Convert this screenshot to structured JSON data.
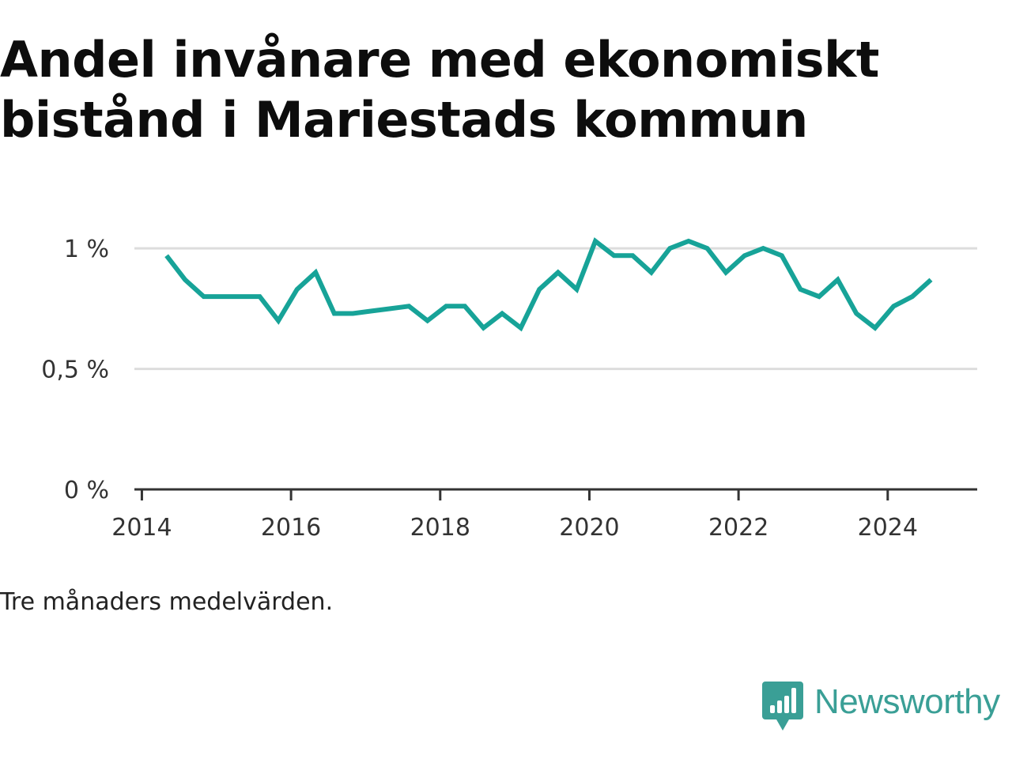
{
  "title_lines": [
    "Andel invånare med ekonomiskt",
    "bistånd i Mariestads kommun"
  ],
  "note": "Tre månaders medelvärden.",
  "brand": {
    "name": "Newsworthy",
    "icon": "newsworthy-logo-icon",
    "color": "#3a9f96"
  },
  "colors": {
    "line": "#17a398",
    "grid": "#dddddd",
    "axis": "#333333",
    "text": "#333333"
  },
  "chart_data": {
    "type": "line",
    "title": "",
    "xlabel": "",
    "ylabel": "",
    "xlim": [
      2013.9,
      2025.2
    ],
    "ylim": [
      0,
      1.03
    ],
    "grid": true,
    "yticks": [
      {
        "value": 0,
        "label": "0 %"
      },
      {
        "value": 0.5,
        "label": "0,5 %"
      },
      {
        "value": 1,
        "label": "1 %"
      }
    ],
    "xticks": [
      {
        "value": 2014,
        "label": "2014"
      },
      {
        "value": 2016,
        "label": "2016"
      },
      {
        "value": 2018,
        "label": "2018"
      },
      {
        "value": 2020,
        "label": "2020"
      },
      {
        "value": 2022,
        "label": "2022"
      },
      {
        "value": 2024,
        "label": "2024"
      }
    ],
    "series": [
      {
        "color": "#17a398",
        "x": [
          2014.33,
          2014.58,
          2014.83,
          2015.08,
          2015.33,
          2015.58,
          2015.83,
          2016.08,
          2016.33,
          2016.58,
          2016.83,
          2017.08,
          2017.33,
          2017.58,
          2017.83,
          2018.08,
          2018.33,
          2018.58,
          2018.83,
          2019.08,
          2019.33,
          2019.58,
          2019.83,
          2020.08,
          2020.33,
          2020.58,
          2020.83,
          2021.08,
          2021.33,
          2021.58,
          2021.83,
          2022.08,
          2022.33,
          2022.58,
          2022.83,
          2023.08,
          2023.33,
          2023.58,
          2023.83,
          2024.08,
          2024.33,
          2024.58
        ],
        "y": [
          0.97,
          0.87,
          0.8,
          0.8,
          0.8,
          0.8,
          0.7,
          0.83,
          0.9,
          0.73,
          0.73,
          0.74,
          0.75,
          0.76,
          0.7,
          0.76,
          0.76,
          0.67,
          0.73,
          0.67,
          0.83,
          0.9,
          0.83,
          1.03,
          0.97,
          0.97,
          0.9,
          1.0,
          1.03,
          1.0,
          0.9,
          0.97,
          1.0,
          0.97,
          0.83,
          0.8,
          0.87,
          0.73,
          0.67,
          0.76,
          0.8,
          0.87
        ]
      }
    ]
  }
}
